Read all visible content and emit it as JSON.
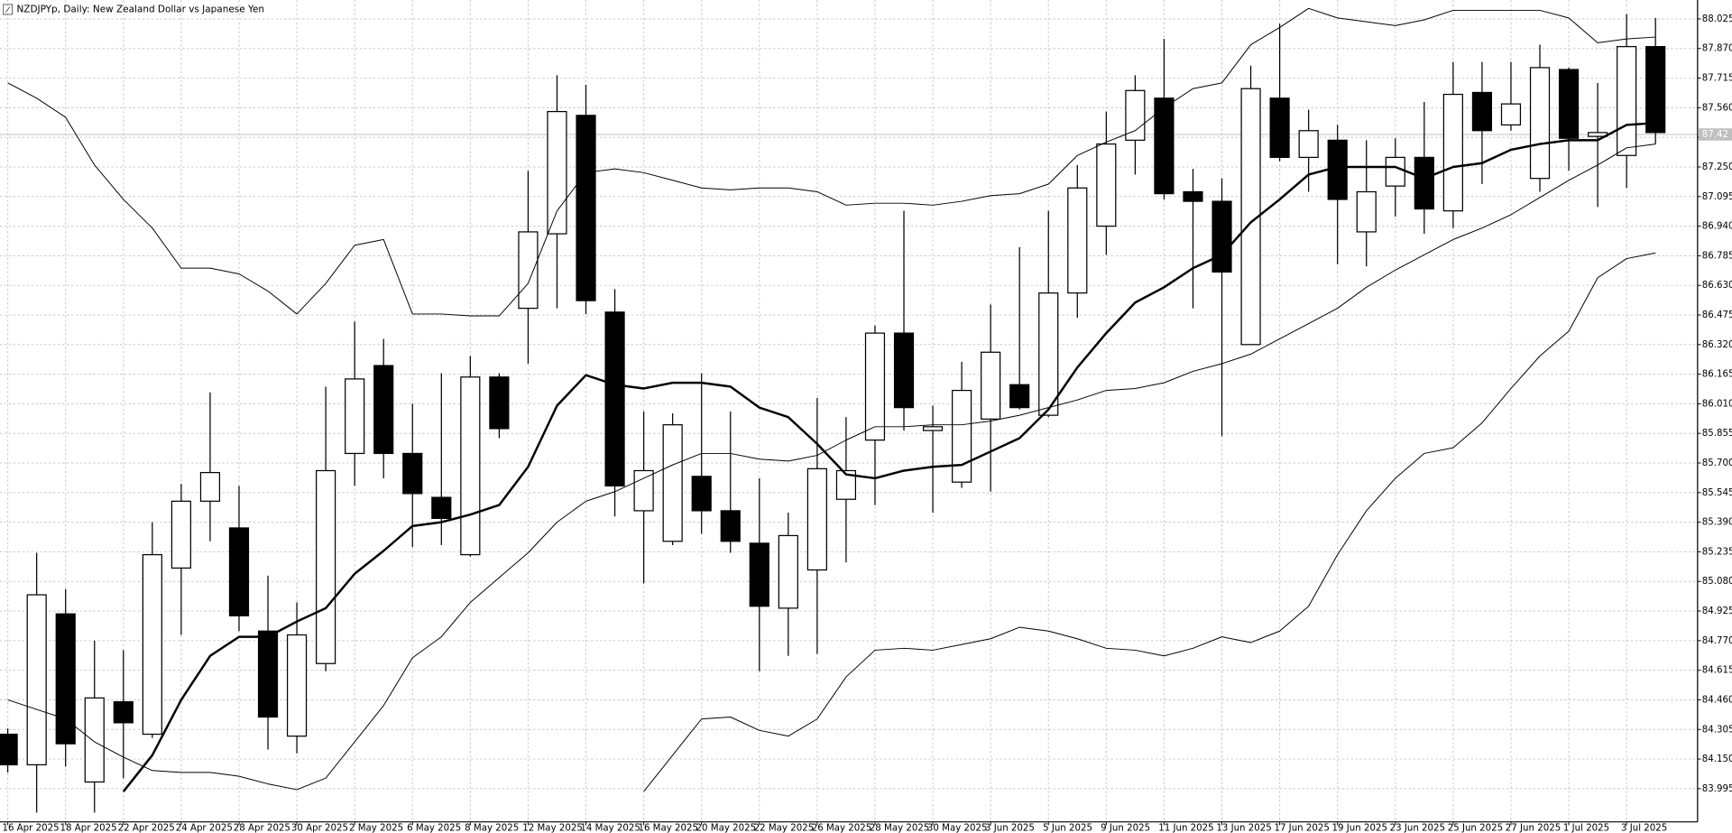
{
  "chart_data": {
    "type": "candlestick",
    "title": "NZDJPYp, Daily:  New Zealand Dollar vs Japanese Yen",
    "x": [
      "16 Apr 2025",
      null,
      "18 Apr 2025",
      null,
      "22 Apr 2025",
      null,
      "24 Apr 2025",
      null,
      "28 Apr 2025",
      null,
      "30 Apr 2025",
      null,
      "2 May 2025",
      null,
      "6 May 2025",
      null,
      "8 May 2025",
      null,
      "12 May 2025",
      null,
      "14 May 2025",
      null,
      "16 May 2025",
      null,
      "20 May 2025",
      null,
      "22 May 2025",
      null,
      "26 May 2025",
      null,
      "28 May 2025",
      null,
      "30 May 2025",
      null,
      "3 Jun 2025",
      null,
      "5 Jun 2025",
      null,
      "9 Jun 2025",
      null,
      "11 Jun 2025",
      null,
      "13 Jun 2025",
      null,
      "17 Jun 2025",
      null,
      "19 Jun 2025",
      null,
      "23 Jun 2025",
      null,
      "25 Jun 2025",
      null,
      "27 Jun 2025",
      null,
      "1 Jul 2025",
      null,
      "3 Jul 2025",
      null
    ],
    "open": [
      84.28,
      84.12,
      84.91,
      84.03,
      84.45,
      84.28,
      85.15,
      85.5,
      85.36,
      84.82,
      84.27,
      84.65,
      85.75,
      86.21,
      85.75,
      85.52,
      85.22,
      86.15,
      86.51,
      86.9,
      87.52,
      86.49,
      85.45,
      85.29,
      85.63,
      85.45,
      85.28,
      84.94,
      85.14,
      85.51,
      85.82,
      86.38,
      85.87,
      85.6,
      85.93,
      86.11,
      85.95,
      86.59,
      86.94,
      87.39,
      87.61,
      87.12,
      87.07,
      86.32,
      87.61,
      87.3,
      87.39,
      86.91,
      87.15,
      87.3,
      87.02,
      87.64,
      87.47,
      87.19,
      87.76,
      87.41,
      87.31,
      87.88
    ],
    "high": [
      84.31,
      85.23,
      85.04,
      84.77,
      84.72,
      85.39,
      85.59,
      86.07,
      85.58,
      85.11,
      84.97,
      86.1,
      86.44,
      86.35,
      86.01,
      86.17,
      86.26,
      86.17,
      87.23,
      87.73,
      87.68,
      86.61,
      85.97,
      85.96,
      86.17,
      85.97,
      85.62,
      85.44,
      86.04,
      85.94,
      86.42,
      87.02,
      86.0,
      86.23,
      86.53,
      86.83,
      87.02,
      87.26,
      87.54,
      87.73,
      87.92,
      87.24,
      87.19,
      87.78,
      88.0,
      87.55,
      87.47,
      87.39,
      87.4,
      87.59,
      87.8,
      87.8,
      87.8,
      87.89,
      87.77,
      87.69,
      88.05,
      88.03
    ],
    "low": [
      84.08,
      83.87,
      84.11,
      83.87,
      84.05,
      84.26,
      84.8,
      85.29,
      84.82,
      84.2,
      84.18,
      84.61,
      85.58,
      85.62,
      85.26,
      85.27,
      85.21,
      85.83,
      86.22,
      86.51,
      86.48,
      85.42,
      85.07,
      85.27,
      85.33,
      85.23,
      84.61,
      84.69,
      84.7,
      85.18,
      85.48,
      85.87,
      85.44,
      85.57,
      85.55,
      85.98,
      85.94,
      86.46,
      86.79,
      87.21,
      87.08,
      86.51,
      85.84,
      86.32,
      87.28,
      87.12,
      86.74,
      86.73,
      86.99,
      86.9,
      86.93,
      87.16,
      87.44,
      87.12,
      87.23,
      87.04,
      87.14,
      87.37
    ],
    "close": [
      84.12,
      85.01,
      84.23,
      84.47,
      84.34,
      85.22,
      85.5,
      85.65,
      84.9,
      84.37,
      84.8,
      85.66,
      86.14,
      85.75,
      85.54,
      85.41,
      86.15,
      85.88,
      86.91,
      87.54,
      86.55,
      85.58,
      85.66,
      85.9,
      85.45,
      85.29,
      84.95,
      85.32,
      85.67,
      85.66,
      86.38,
      85.99,
      85.89,
      86.08,
      86.28,
      85.99,
      86.59,
      87.14,
      87.37,
      87.65,
      87.11,
      87.07,
      86.7,
      87.66,
      87.3,
      87.44,
      87.08,
      87.12,
      87.3,
      87.03,
      87.63,
      87.44,
      87.58,
      87.77,
      87.4,
      87.43,
      87.88,
      87.43
    ],
    "bull_color": "#ffffff",
    "bear_color": "#000000",
    "wick_color": "#000000",
    "overlays": [
      {
        "color": "#000000",
        "width": 0.8,
        "values": [
          87.69,
          87.61,
          87.51,
          87.26,
          87.08,
          86.93,
          86.72,
          86.72,
          86.69,
          86.6,
          86.48,
          86.64,
          86.84,
          86.87,
          86.48,
          86.48,
          86.47,
          86.47,
          86.64,
          87.02,
          87.22,
          87.24,
          87.22,
          87.18,
          87.14,
          87.13,
          87.14,
          87.14,
          87.12,
          87.05,
          87.06,
          87.06,
          87.05,
          87.07,
          87.1,
          87.11,
          87.16,
          87.31,
          87.38,
          87.44,
          87.56,
          87.66,
          87.69,
          87.89,
          87.98,
          88.08,
          88.03,
          88.01,
          87.99,
          88.02,
          88.07,
          88.07,
          88.07,
          88.07,
          88.03,
          87.9,
          87.92,
          87.93
        ]
      },
      {
        "color": "#000000",
        "width": 0.8,
        "values": [
          84.46,
          84.41,
          84.36,
          84.24,
          84.16,
          84.09,
          84.08,
          84.08,
          84.06,
          84.02,
          83.99,
          84.05,
          84.24,
          84.43,
          84.68,
          84.79,
          84.97,
          85.1,
          85.23,
          85.39,
          85.5,
          85.55,
          85.62,
          85.69,
          85.75,
          85.75,
          85.72,
          85.71,
          85.74,
          85.82,
          85.89,
          85.89,
          85.9,
          85.9,
          85.92,
          85.95,
          85.99,
          86.03,
          86.08,
          86.09,
          86.12,
          86.18,
          86.22,
          86.27,
          86.35,
          86.43,
          86.51,
          86.62,
          86.71,
          86.79,
          86.87,
          86.93,
          87.0,
          87.09,
          87.18,
          87.26,
          87.35,
          87.37
        ]
      },
      {
        "color": "#000000",
        "width": 0.8,
        "values": [
          null,
          null,
          null,
          null,
          null,
          null,
          null,
          null,
          null,
          null,
          null,
          null,
          null,
          null,
          null,
          null,
          null,
          null,
          null,
          null,
          null,
          null,
          83.98,
          84.17,
          84.36,
          84.37,
          84.3,
          84.27,
          84.36,
          84.58,
          84.72,
          84.73,
          84.72,
          84.75,
          84.78,
          84.84,
          84.82,
          84.78,
          84.73,
          84.72,
          84.69,
          84.73,
          84.79,
          84.76,
          84.82,
          84.95,
          85.22,
          85.45,
          85.62,
          85.75,
          85.78,
          85.91,
          86.09,
          86.26,
          86.39,
          86.67,
          86.77,
          86.8
        ]
      },
      {
        "color": "#000000",
        "width": 2,
        "values": [
          null,
          null,
          null,
          null,
          83.98,
          84.17,
          84.46,
          84.69,
          84.79,
          84.79,
          84.87,
          84.94,
          85.12,
          85.24,
          85.37,
          85.39,
          85.43,
          85.48,
          85.68,
          86.0,
          86.16,
          86.11,
          86.09,
          86.12,
          86.12,
          86.1,
          85.99,
          85.94,
          85.8,
          85.64,
          85.62,
          85.66,
          85.68,
          85.69,
          85.76,
          85.83,
          85.98,
          86.2,
          86.38,
          86.54,
          86.62,
          86.72,
          86.79,
          86.96,
          87.08,
          87.21,
          87.25,
          87.25,
          87.25,
          87.19,
          87.25,
          87.27,
          87.34,
          87.37,
          87.39,
          87.39,
          87.47,
          87.48
        ]
      }
    ],
    "last_price": 87.42,
    "ylim": [
      83.821,
      88.124
    ],
    "yticks": [
      88.025,
      {
        "value": 87.87,
        "label": "87.870"
      },
      87.715,
      {
        "value": 87.56,
        "label": "87.560"
      },
      87.405,
      {
        "value": 87.25,
        "label": "87.250"
      },
      87.095,
      {
        "value": 86.94,
        "label": "86.940"
      },
      86.785,
      {
        "value": 86.63,
        "label": "86.630"
      },
      86.475,
      {
        "value": 86.32,
        "label": "86.320"
      },
      86.165,
      {
        "value": 86.01,
        "label": "86.010"
      },
      85.855,
      {
        "value": 85.7,
        "label": "85.700"
      },
      85.545,
      {
        "value": 85.39,
        "label": "85.390"
      },
      85.235,
      {
        "value": 85.08,
        "label": "85.080"
      },
      84.925,
      {
        "value": 84.77,
        "label": "84.770"
      },
      84.615,
      {
        "value": 84.46,
        "label": "84.460"
      },
      84.305,
      {
        "value": 84.15,
        "label": "84.150"
      },
      83.995
    ],
    "grid": true
  }
}
